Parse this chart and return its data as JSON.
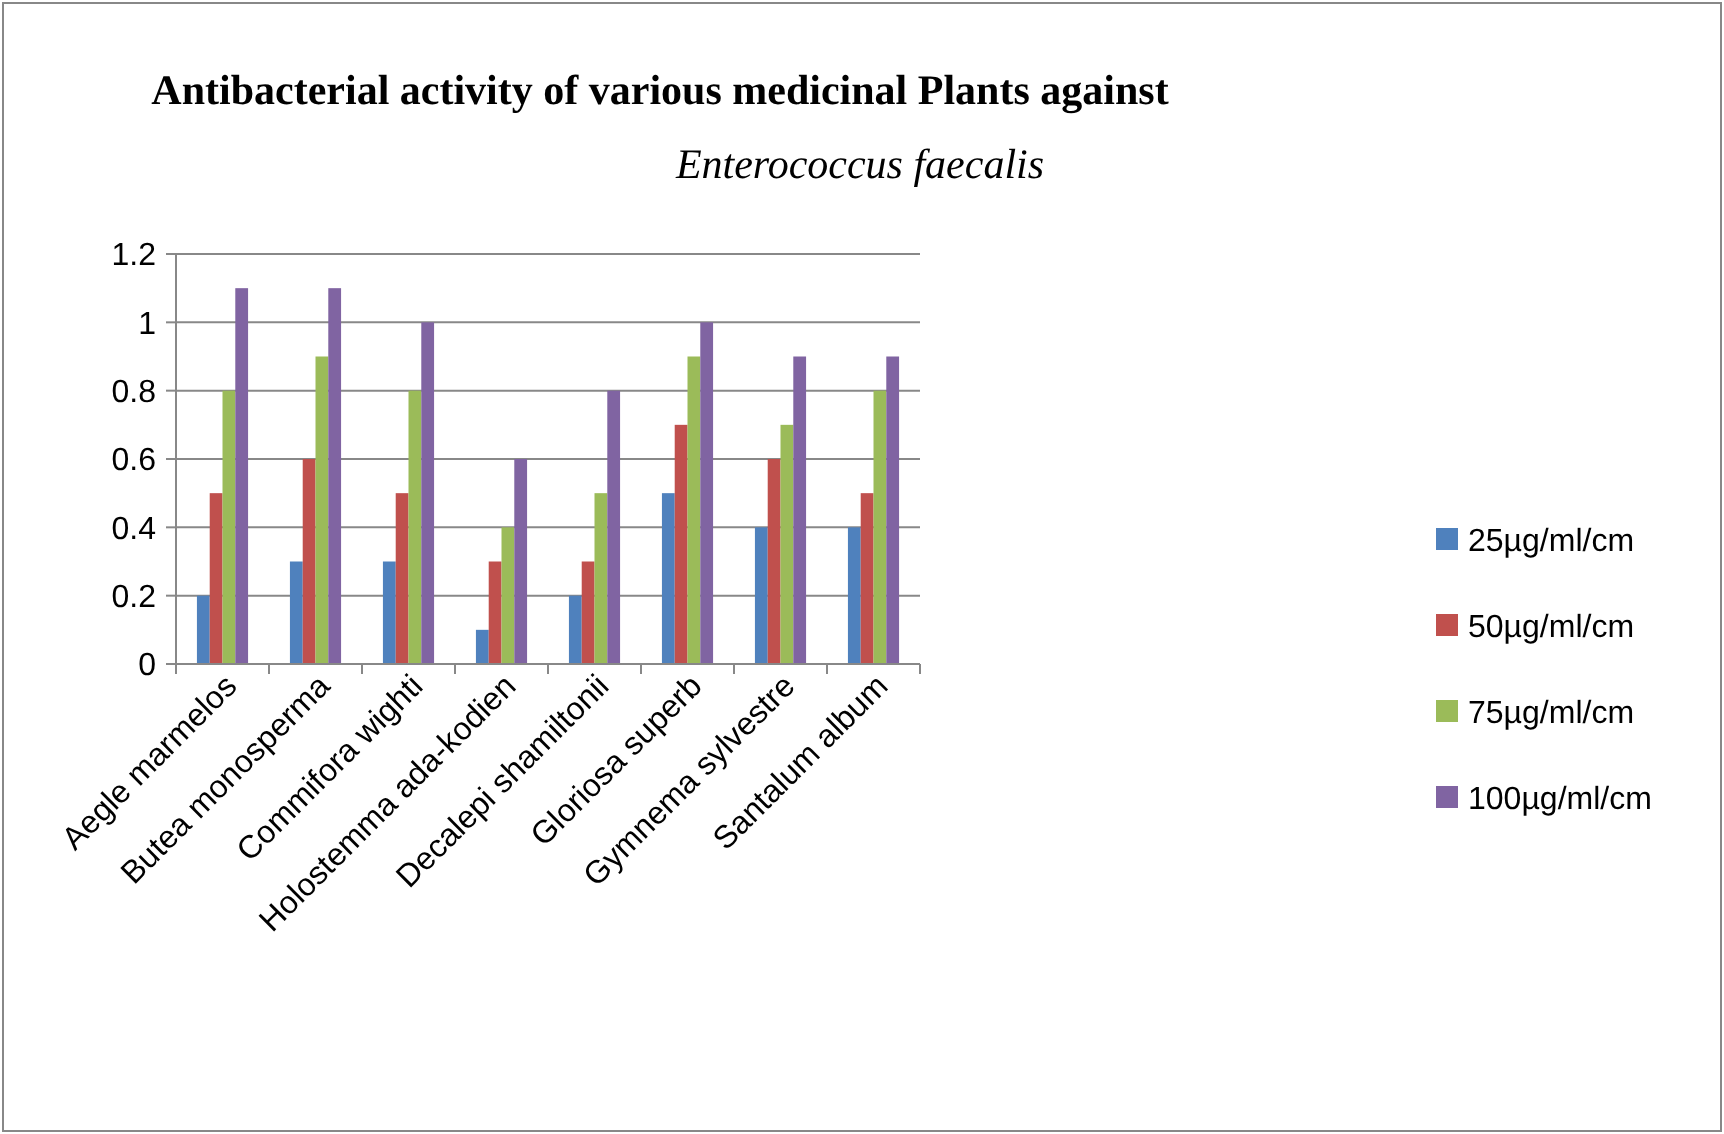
{
  "chart_data": {
    "type": "bar",
    "title": "Antibacterial activity of various medicinal Plants against",
    "subtitle": "Enterococcus faecalis",
    "categories": [
      "Aegle marmelos",
      "Butea monosperma",
      "Commifora wighti",
      "Holostemma ada-kodien",
      "Decalepi shamiltonii",
      "Gloriosa superb",
      "Gymnema sylvestre",
      "Santalum album"
    ],
    "series": [
      {
        "name": "25µg/ml/cm",
        "color": "#4f81bd",
        "values": [
          0.2,
          0.3,
          0.3,
          0.1,
          0.2,
          0.5,
          0.4,
          0.4
        ]
      },
      {
        "name": "50µg/ml/cm",
        "color": "#c0504d",
        "values": [
          0.5,
          0.6,
          0.5,
          0.3,
          0.3,
          0.7,
          0.6,
          0.5
        ]
      },
      {
        "name": "75µg/ml/cm",
        "color": "#9bbb59",
        "values": [
          0.8,
          0.9,
          0.8,
          0.4,
          0.5,
          0.9,
          0.7,
          0.8
        ]
      },
      {
        "name": "100µg/ml/cm",
        "color": "#8064a2",
        "values": [
          1.1,
          1.1,
          1.0,
          0.6,
          0.8,
          1.0,
          0.9,
          0.9
        ]
      }
    ],
    "ylim": [
      0,
      1.2
    ],
    "yticks": [
      0,
      0.2,
      0.4,
      0.6,
      0.8,
      1,
      1.2
    ],
    "grid": "y",
    "legend": "right"
  }
}
